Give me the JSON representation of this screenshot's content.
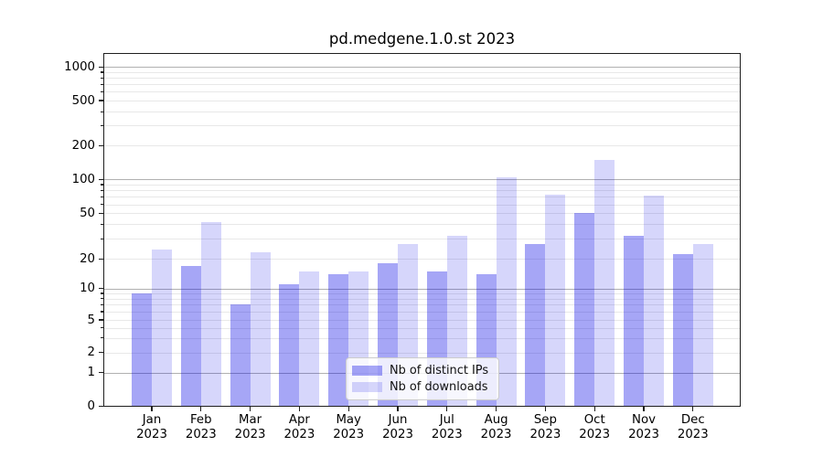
{
  "figure": {
    "background": "#ffffff"
  },
  "chart_data": {
    "type": "bar",
    "title": "pd.medgene.1.0.st 2023",
    "yscale": "symlog",
    "categories": [
      "Jan 2023",
      "Feb 2023",
      "Mar 2023",
      "Apr 2023",
      "May 2023",
      "Jun 2023",
      "Jul 2023",
      "Aug 2023",
      "Sep 2023",
      "Oct 2023",
      "Nov 2023",
      "Dec 2023"
    ],
    "x_tick_line1": [
      "Jan",
      "Feb",
      "Mar",
      "Apr",
      "May",
      "Jun",
      "Jul",
      "Aug",
      "Sep",
      "Oct",
      "Nov",
      "Dec"
    ],
    "x_tick_line2": "2023",
    "series": [
      {
        "name": "Nb of distinct IPs",
        "color": "#a6a6f6",
        "values": [
          9,
          17,
          7,
          11,
          14,
          18,
          15,
          14,
          27,
          50,
          32,
          22
        ]
      },
      {
        "name": "Nb of downloads",
        "color": "#d7d7fb",
        "values": [
          24,
          42,
          23,
          15,
          15,
          27,
          32,
          105,
          73,
          150,
          72,
          27
        ]
      }
    ],
    "y_tick_labels": [
      "1000",
      "500",
      "200",
      "100",
      "50",
      "20",
      "10",
      "5",
      "2",
      "1",
      "0"
    ],
    "ylim": [
      0,
      1300
    ],
    "grid": true,
    "legend_position": "lower center"
  },
  "colors": {
    "bar_distinct_ips": "rgba(0,0,230,0.35)",
    "bar_downloads": "rgba(0,0,230,0.16)",
    "grid_major": "#b0b0b0",
    "grid_minor": "#e8e8e8",
    "axis": "#1f1f1f",
    "text": "#000000",
    "legend_border": "#cccccc",
    "legend_bg": "rgba(255,255,255,0.8)"
  }
}
